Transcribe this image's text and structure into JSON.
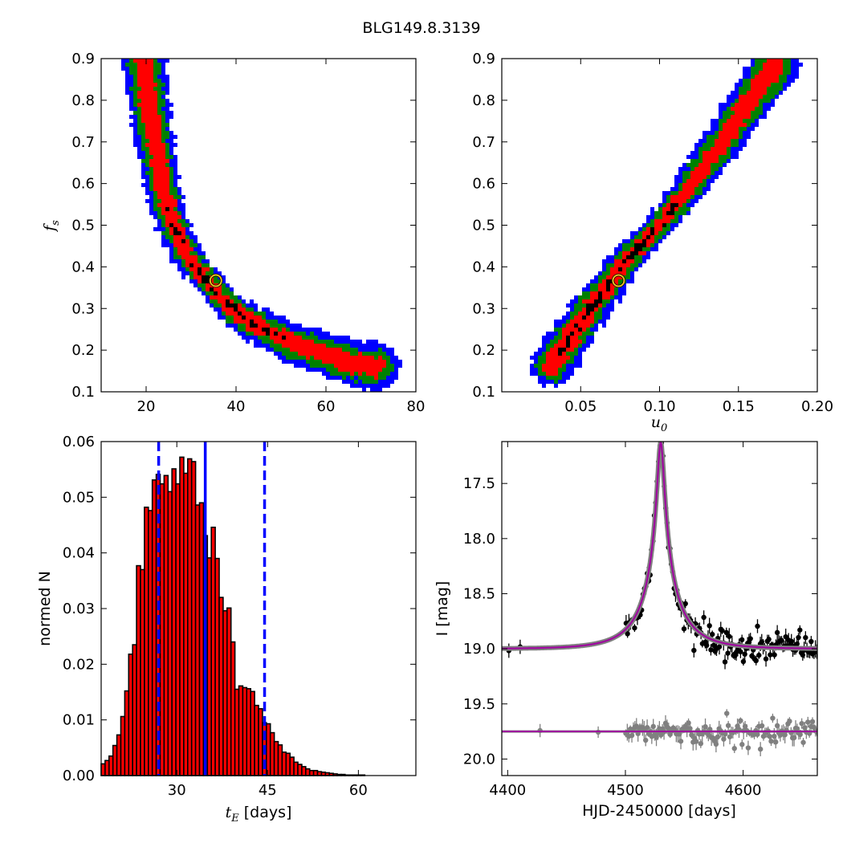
{
  "figure_title": "BLG149.8.3139",
  "chart_data": [
    {
      "id": "tE-vs-fs",
      "type": "heatmap",
      "title": "",
      "xlabel": "",
      "ylabel": "f",
      "ylabel_sub": "s",
      "xlim": [
        10,
        80
      ],
      "ylim": [
        0.1,
        0.9
      ],
      "xticks": [
        20,
        40,
        60,
        80
      ],
      "xtick_labels": [
        "20",
        "40",
        "60",
        "80"
      ],
      "yticks": [
        0.1,
        0.2,
        0.3,
        0.4,
        0.5,
        0.6,
        0.7,
        0.8,
        0.9
      ],
      "ytick_labels": [
        "0.1",
        "0.2",
        "0.3",
        "0.4",
        "0.5",
        "0.6",
        "0.7",
        "0.8",
        "0.9"
      ],
      "confidence_colors": {
        "outer": "#0000ff",
        "middle": "#008000",
        "inner": "#ff0000",
        "core": "#000000"
      },
      "ridge": [
        [
          19.5,
          0.9
        ],
        [
          20.5,
          0.8
        ],
        [
          22,
          0.7
        ],
        [
          23.5,
          0.6
        ],
        [
          26,
          0.5
        ],
        [
          29.5,
          0.42
        ],
        [
          34,
          0.36
        ],
        [
          38,
          0.31
        ],
        [
          43,
          0.27
        ],
        [
          48,
          0.24
        ],
        [
          54,
          0.21
        ],
        [
          60,
          0.19
        ],
        [
          66,
          0.17
        ],
        [
          71,
          0.16
        ]
      ],
      "best_fit": {
        "x": 35.5,
        "y": 0.367
      }
    },
    {
      "id": "u0-vs-fs",
      "type": "heatmap",
      "title": "",
      "xlabel": "u",
      "xlabel_sub": "0",
      "ylabel": "",
      "xlim": [
        0.0,
        0.2
      ],
      "ylim": [
        0.1,
        0.9
      ],
      "xticks": [
        0.05,
        0.1,
        0.15,
        0.2
      ],
      "xtick_labels": [
        "0.05",
        "0.10",
        "0.15",
        "0.20"
      ],
      "yticks": [
        0.1,
        0.2,
        0.3,
        0.4,
        0.5,
        0.6,
        0.7,
        0.8,
        0.9
      ],
      "ytick_labels": [
        "0.1",
        "0.2",
        "0.3",
        "0.4",
        "0.5",
        "0.6",
        "0.7",
        "0.8",
        "0.9"
      ],
      "confidence_colors": {
        "outer": "#0000ff",
        "middle": "#008000",
        "inner": "#ff0000",
        "core": "#000000"
      },
      "ridge": [
        [
          0.032,
          0.165
        ],
        [
          0.045,
          0.24
        ],
        [
          0.058,
          0.31
        ],
        [
          0.07,
          0.37
        ],
        [
          0.085,
          0.44
        ],
        [
          0.1,
          0.5
        ],
        [
          0.115,
          0.57
        ],
        [
          0.128,
          0.64
        ],
        [
          0.14,
          0.7
        ],
        [
          0.152,
          0.77
        ],
        [
          0.163,
          0.83
        ],
        [
          0.173,
          0.88
        ]
      ],
      "best_fit": {
        "x": 0.074,
        "y": 0.367
      }
    },
    {
      "id": "tE-histogram",
      "type": "bar",
      "title": "",
      "xlabel": "t",
      "xlabel_sub": "E",
      "xlabel_suffix": " [days]",
      "ylabel": "normed N",
      "xlim": [
        17.5,
        69.5
      ],
      "ylim": [
        0,
        0.06
      ],
      "xticks": [
        30,
        45,
        60
      ],
      "xtick_labels": [
        "30",
        "45",
        "60"
      ],
      "yticks": [
        0.0,
        0.01,
        0.02,
        0.03,
        0.04,
        0.05,
        0.06
      ],
      "ytick_labels": [
        "0.00",
        "0.01",
        "0.02",
        "0.03",
        "0.04",
        "0.05",
        "0.06"
      ],
      "bin_start": 17.5,
      "bin_width": 0.65,
      "values": [
        0.0021,
        0.0027,
        0.0035,
        0.0054,
        0.0073,
        0.0106,
        0.0152,
        0.0218,
        0.0235,
        0.0377,
        0.037,
        0.0482,
        0.0476,
        0.0531,
        0.0541,
        0.0524,
        0.0539,
        0.051,
        0.0551,
        0.0524,
        0.0572,
        0.0543,
        0.0569,
        0.0564,
        0.0486,
        0.049,
        0.0431,
        0.0391,
        0.0446,
        0.039,
        0.032,
        0.0296,
        0.0301,
        0.024,
        0.0155,
        0.0161,
        0.0158,
        0.0156,
        0.0151,
        0.0126,
        0.012,
        0.0095,
        0.0093,
        0.0077,
        0.0061,
        0.0055,
        0.0042,
        0.004,
        0.0033,
        0.0024,
        0.002,
        0.0016,
        0.0012,
        0.0009,
        0.0009,
        0.0007,
        0.0006,
        0.0005,
        0.0004,
        0.0003,
        0.0002,
        0.0002,
        0.0001,
        0.0001,
        0.0001,
        0.0001,
        0.0001,
        0.0,
        0.0,
        0.0,
        0.0,
        0.0,
        0.0,
        0.0,
        0.0,
        0.0,
        0.0,
        0.0,
        0.0,
        0.0
      ],
      "bar_color": "#ff0000",
      "median": 34.7,
      "lower": 27.0,
      "upper": 44.5,
      "line_color": "#0000ff"
    },
    {
      "id": "light-curve",
      "type": "scatter",
      "title": "",
      "xlabel": "HJD-2450000 [days]",
      "ylabel": "I [mag]",
      "xlim": [
        4395,
        4663
      ],
      "ylim": [
        20.15,
        17.12
      ],
      "y_inverted": true,
      "xticks": [
        4400,
        4500,
        4600
      ],
      "xtick_labels": [
        "4400",
        "4500",
        "4600"
      ],
      "yticks": [
        17.5,
        18.0,
        18.5,
        19.0,
        19.5,
        20.0
      ],
      "ytick_labels": [
        "17.5",
        "18.0",
        "18.5",
        "19.0",
        "19.5",
        "20.0"
      ],
      "model": {
        "baseline": 19.0,
        "peak_mag": 17.12,
        "t0": 4530,
        "tE": 35.5,
        "u0": 0.074,
        "fs": 0.367
      },
      "residual_offset": 19.75,
      "series": [
        {
          "role": "data",
          "color": "#000000"
        },
        {
          "role": "model",
          "color": "#a000a0"
        },
        {
          "role": "residuals",
          "color": "#808080"
        }
      ]
    }
  ]
}
